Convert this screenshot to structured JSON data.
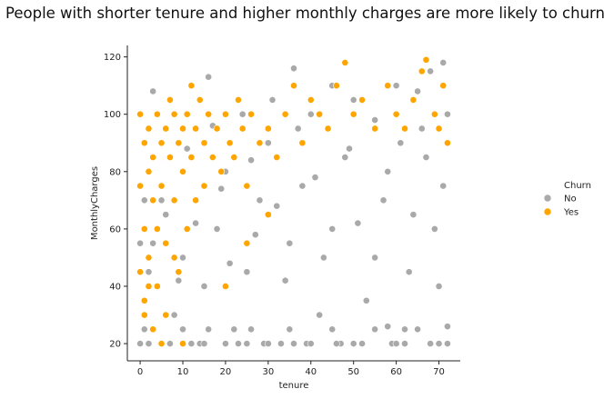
{
  "chart_data": {
    "type": "scatter",
    "title": "People with shorter tenure and higher monthly charges are more likely to churn",
    "xlabel": "tenure",
    "ylabel": "MonthlyCharges",
    "xlim": [
      -3,
      75
    ],
    "ylim": [
      14,
      124
    ],
    "xticks": [
      0,
      10,
      20,
      30,
      40,
      50,
      60,
      70
    ],
    "yticks": [
      20,
      40,
      60,
      80,
      100,
      120
    ],
    "grid": false,
    "legend": {
      "title": "Churn",
      "placement": "right"
    },
    "series": [
      {
        "name": "No",
        "color": "#a9a9a9",
        "points": [
          [
            0,
            20
          ],
          [
            1,
            25
          ],
          [
            2,
            45
          ],
          [
            3,
            55
          ],
          [
            5,
            70
          ],
          [
            8,
            30
          ],
          [
            10,
            50
          ],
          [
            12,
            20
          ],
          [
            15,
            40
          ],
          [
            18,
            60
          ],
          [
            20,
            80
          ],
          [
            22,
            25
          ],
          [
            25,
            45
          ],
          [
            28,
            70
          ],
          [
            30,
            90
          ],
          [
            33,
            20
          ],
          [
            35,
            55
          ],
          [
            38,
            75
          ],
          [
            40,
            100
          ],
          [
            42,
            30
          ],
          [
            45,
            60
          ],
          [
            48,
            85
          ],
          [
            50,
            105
          ],
          [
            52,
            20
          ],
          [
            55,
            50
          ],
          [
            58,
            80
          ],
          [
            60,
            110
          ],
          [
            62,
            25
          ],
          [
            64,
            65
          ],
          [
            66,
            95
          ],
          [
            68,
            115
          ],
          [
            70,
            40
          ],
          [
            71,
            75
          ],
          [
            72,
            100
          ],
          [
            72,
            20
          ],
          [
            71,
            118
          ],
          [
            69,
            60
          ],
          [
            67,
            85
          ],
          [
            65,
            108
          ],
          [
            63,
            45
          ],
          [
            61,
            90
          ],
          [
            59,
            20
          ],
          [
            57,
            70
          ],
          [
            55,
            98
          ],
          [
            53,
            35
          ],
          [
            51,
            62
          ],
          [
            49,
            88
          ],
          [
            47,
            20
          ],
          [
            45,
            110
          ],
          [
            43,
            50
          ],
          [
            41,
            78
          ],
          [
            39,
            20
          ],
          [
            37,
            95
          ],
          [
            36,
            116
          ],
          [
            34,
            42
          ],
          [
            32,
            68
          ],
          [
            31,
            105
          ],
          [
            29,
            20
          ],
          [
            27,
            58
          ],
          [
            26,
            84
          ],
          [
            24,
            100
          ],
          [
            23,
            20
          ],
          [
            21,
            48
          ],
          [
            19,
            74
          ],
          [
            17,
            96
          ],
          [
            16,
            113
          ],
          [
            14,
            20
          ],
          [
            13,
            62
          ],
          [
            11,
            88
          ],
          [
            9,
            42
          ],
          [
            7,
            20
          ],
          [
            6,
            65
          ],
          [
            4,
            100
          ],
          [
            3,
            108
          ],
          [
            2,
            20
          ],
          [
            1,
            70
          ],
          [
            0,
            55
          ],
          [
            5,
            20
          ],
          [
            10,
            25
          ],
          [
            15,
            20
          ],
          [
            20,
            20
          ],
          [
            25,
            20
          ],
          [
            30,
            20
          ],
          [
            35,
            25
          ],
          [
            40,
            20
          ],
          [
            45,
            25
          ],
          [
            50,
            20
          ],
          [
            55,
            25
          ],
          [
            60,
            20
          ],
          [
            65,
            25
          ],
          [
            70,
            20
          ],
          [
            72,
            26
          ],
          [
            68,
            20
          ],
          [
            62,
            20
          ],
          [
            58,
            26
          ],
          [
            52,
            20
          ],
          [
            46,
            20
          ],
          [
            36,
            20
          ],
          [
            26,
            25
          ],
          [
            16,
            25
          ]
        ]
      },
      {
        "name": "Yes",
        "color": "#ffa500",
        "points": [
          [
            0,
            100
          ],
          [
            0,
            75
          ],
          [
            0,
            45
          ],
          [
            1,
            90
          ],
          [
            1,
            60
          ],
          [
            1,
            30
          ],
          [
            2,
            95
          ],
          [
            2,
            80
          ],
          [
            2,
            50
          ],
          [
            3,
            85
          ],
          [
            3,
            70
          ],
          [
            4,
            100
          ],
          [
            4,
            40
          ],
          [
            5,
            90
          ],
          [
            5,
            75
          ],
          [
            6,
            95
          ],
          [
            6,
            55
          ],
          [
            7,
            85
          ],
          [
            7,
            105
          ],
          [
            8,
            100
          ],
          [
            8,
            70
          ],
          [
            9,
            90
          ],
          [
            9,
            45
          ],
          [
            10,
            95
          ],
          [
            10,
            80
          ],
          [
            11,
            100
          ],
          [
            11,
            60
          ],
          [
            12,
            110
          ],
          [
            12,
            85
          ],
          [
            13,
            95
          ],
          [
            13,
            70
          ],
          [
            14,
            105
          ],
          [
            15,
            90
          ],
          [
            15,
            75
          ],
          [
            16,
            100
          ],
          [
            17,
            85
          ],
          [
            18,
            95
          ],
          [
            19,
            80
          ],
          [
            20,
            100
          ],
          [
            21,
            90
          ],
          [
            22,
            85
          ],
          [
            23,
            105
          ],
          [
            24,
            95
          ],
          [
            25,
            75
          ],
          [
            26,
            100
          ],
          [
            28,
            90
          ],
          [
            30,
            95
          ],
          [
            32,
            85
          ],
          [
            34,
            100
          ],
          [
            36,
            110
          ],
          [
            38,
            90
          ],
          [
            40,
            105
          ],
          [
            42,
            100
          ],
          [
            44,
            95
          ],
          [
            46,
            110
          ],
          [
            48,
            118
          ],
          [
            50,
            100
          ],
          [
            52,
            105
          ],
          [
            55,
            95
          ],
          [
            58,
            110
          ],
          [
            60,
            100
          ],
          [
            62,
            95
          ],
          [
            64,
            105
          ],
          [
            66,
            115
          ],
          [
            67,
            119
          ],
          [
            69,
            100
          ],
          [
            70,
            95
          ],
          [
            71,
            110
          ],
          [
            72,
            90
          ],
          [
            20,
            40
          ],
          [
            25,
            55
          ],
          [
            30,
            65
          ],
          [
            10,
            20
          ],
          [
            5,
            20
          ],
          [
            3,
            25
          ],
          [
            1,
            35
          ],
          [
            2,
            40
          ],
          [
            4,
            60
          ],
          [
            6,
            30
          ],
          [
            8,
            50
          ]
        ]
      }
    ]
  }
}
